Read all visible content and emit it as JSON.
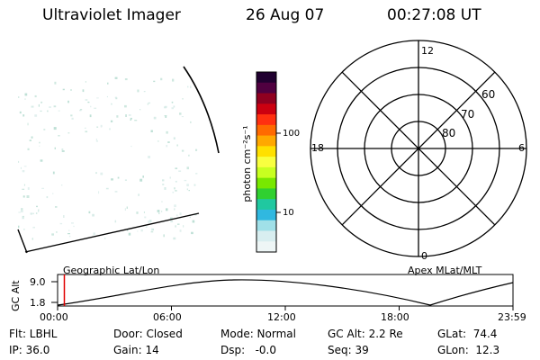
{
  "header": {
    "title": "Ultraviolet Imager",
    "date": "26 Aug 07",
    "time": "00:27:08 UT"
  },
  "colorbar": {
    "unit_label": "photon cm⁻²s⁻¹",
    "tick_labels": [
      "100",
      "10"
    ],
    "colors_top_to_bottom": [
      "#200030",
      "#500040",
      "#900020",
      "#cc0010",
      "#ff3010",
      "#ff6a00",
      "#ffa800",
      "#ffe000",
      "#f8ff40",
      "#c8ff20",
      "#78e800",
      "#30d030",
      "#20c8a0",
      "#30b8e0",
      "#a0e0e8",
      "#d8eef0",
      "#eef6f6"
    ]
  },
  "polar_plot": {
    "hour_labels": {
      "top": "12",
      "left": "18",
      "right": "6",
      "bottom": "0"
    },
    "lat_labels": [
      "60",
      "70",
      "80"
    ]
  },
  "timeline": {
    "yaxis_label": "GC Alt",
    "y_ticks": [
      "9.0",
      "1.8"
    ],
    "left_label": "Geographic Lat/Lon",
    "right_label": "Apex MLat/MLT",
    "x_ticks": [
      "00:00",
      "06:00",
      "12:00",
      "18:00",
      "23:59"
    ],
    "marker_color": "#e00000"
  },
  "footer": {
    "filter": "Flt: LBHL",
    "ip": "IP: 36.0",
    "door": "Door: Closed",
    "gain": "Gain: 14",
    "mode": "Mode: Normal",
    "dsp": "Dsp:   -0.0",
    "gcalt": "GC Alt: 2.2 Re",
    "seq": "Seq: 39",
    "glat": "GLat:  74.4",
    "glon": "GLon:  12.3"
  }
}
